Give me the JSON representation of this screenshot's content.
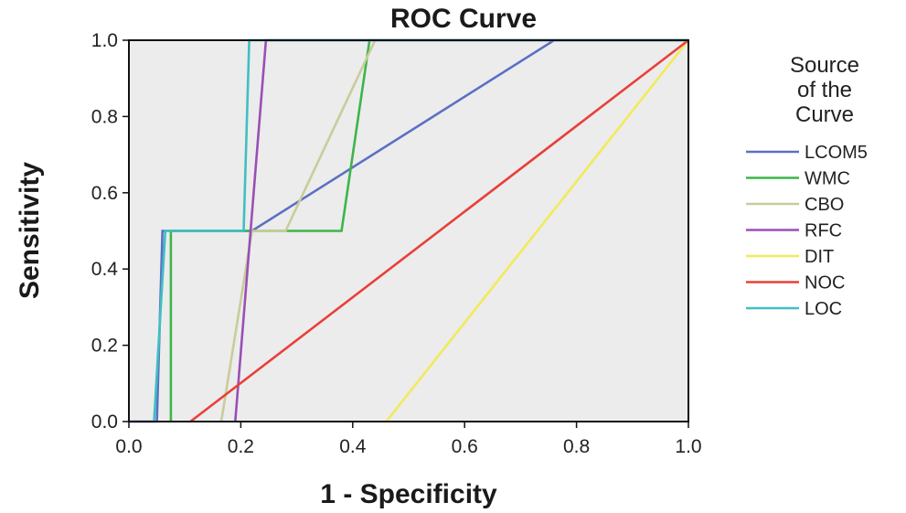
{
  "chart_data": {
    "type": "line",
    "title": "ROC Curve",
    "xlabel": "1 - Specificity",
    "ylabel": "Sensitivity",
    "xlim": [
      0.0,
      1.0
    ],
    "ylim": [
      0.0,
      1.0
    ],
    "x_ticks": [
      "0.0",
      "0.2",
      "0.4",
      "0.6",
      "0.8",
      "1.0"
    ],
    "y_ticks": [
      "0.0",
      "0.2",
      "0.4",
      "0.6",
      "0.8",
      "1.0"
    ],
    "grid": false,
    "background": "#ececec",
    "legend": {
      "title_lines": [
        "Source",
        "of the",
        "Curve"
      ],
      "placement": "right"
    },
    "series": [
      {
        "name": "LCOM5",
        "color": "#5b6fc4",
        "x": [
          0.0,
          0.05,
          0.06,
          0.22,
          0.76,
          1.0
        ],
        "y": [
          0.0,
          0.0,
          0.5,
          0.5,
          1.0,
          1.0
        ]
      },
      {
        "name": "WMC",
        "color": "#3cb54a",
        "x": [
          0.075,
          0.075,
          0.38,
          0.43,
          1.0
        ],
        "y": [
          0.0,
          0.5,
          0.5,
          1.0,
          1.0
        ]
      },
      {
        "name": "CBO",
        "color": "#c9cc9a",
        "x": [
          0.165,
          0.22,
          0.28,
          0.44,
          1.0
        ],
        "y": [
          0.0,
          0.5,
          0.5,
          1.0,
          1.0
        ]
      },
      {
        "name": "RFC",
        "color": "#9a4fb5",
        "x": [
          0.19,
          0.245,
          1.0
        ],
        "y": [
          0.0,
          1.0,
          1.0
        ]
      },
      {
        "name": "DIT",
        "color": "#f2ea5a",
        "x": [
          0.46,
          1.0
        ],
        "y": [
          0.0,
          1.0
        ]
      },
      {
        "name": "NOC",
        "color": "#e8403a",
        "x": [
          0.11,
          1.0
        ],
        "y": [
          0.0,
          1.0
        ]
      },
      {
        "name": "LOC",
        "color": "#3fbfc3",
        "x": [
          0.045,
          0.065,
          0.205,
          0.215,
          1.0
        ],
        "y": [
          0.0,
          0.5,
          0.5,
          1.0,
          1.0
        ]
      }
    ]
  }
}
